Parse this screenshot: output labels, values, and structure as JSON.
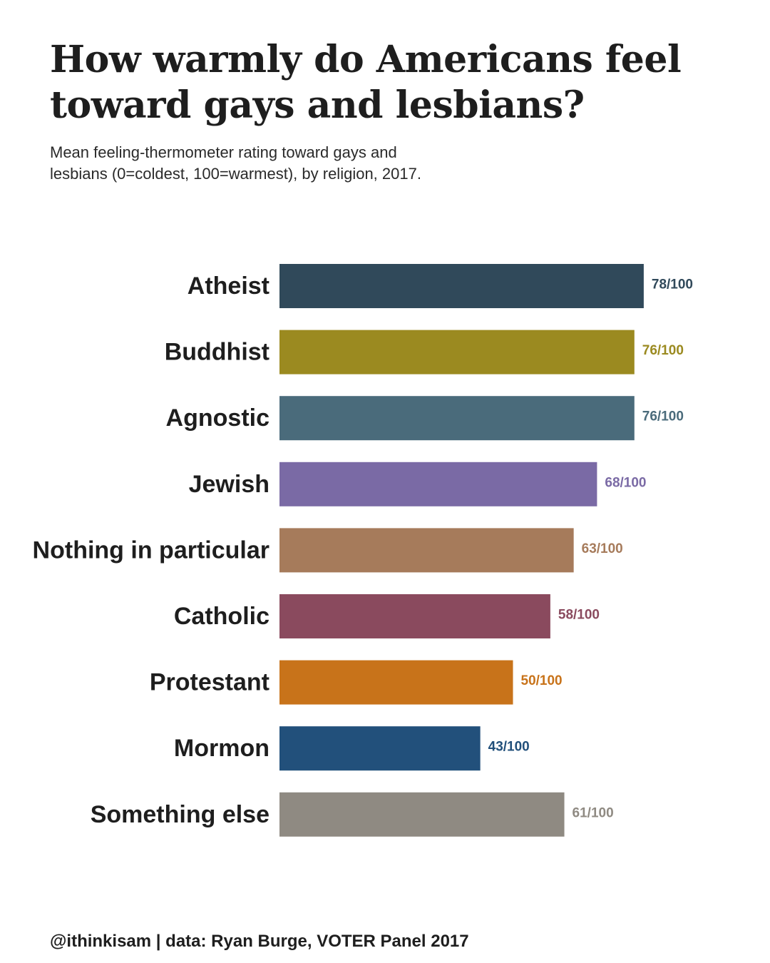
{
  "title_lines": [
    "How warmly do Americans feel",
    "toward gays and lesbians?"
  ],
  "subtitle_lines": [
    "Mean feeling-thermometer rating toward gays and",
    "lesbians (0=coldest, 100=warmest), by religion, 2017."
  ],
  "footer": "@ithinkisam | data: Ryan Burge, VOTER Panel 2017",
  "chart_data": {
    "type": "bar",
    "orientation": "horizontal",
    "title": "How warmly do Americans feel toward gays and lesbians?",
    "subtitle": "Mean feeling-thermometer rating toward gays and lesbians (0=coldest, 100=warmest), by religion, 2017.",
    "xlabel": "",
    "ylabel": "",
    "xlim": [
      0,
      100
    ],
    "grid": false,
    "legend": "none",
    "value_suffix": "/100",
    "categories": [
      "Atheist",
      "Buddhist",
      "Agnostic",
      "Jewish",
      "Nothing in particular",
      "Catholic",
      "Protestant",
      "Mormon",
      "Something else"
    ],
    "values": [
      78,
      76,
      76,
      68,
      63,
      58,
      50,
      43,
      61
    ],
    "data_labels": [
      "78/100",
      "76/100",
      "76/100",
      "68/100",
      "63/100",
      "58/100",
      "50/100",
      "43/100",
      "61/100"
    ],
    "colors": [
      "#30495a",
      "#9b8a20",
      "#4a6b7b",
      "#7a6aa5",
      "#a67b5b",
      "#8a4a5e",
      "#c8731a",
      "#22507b",
      "#8f8a82"
    ]
  }
}
